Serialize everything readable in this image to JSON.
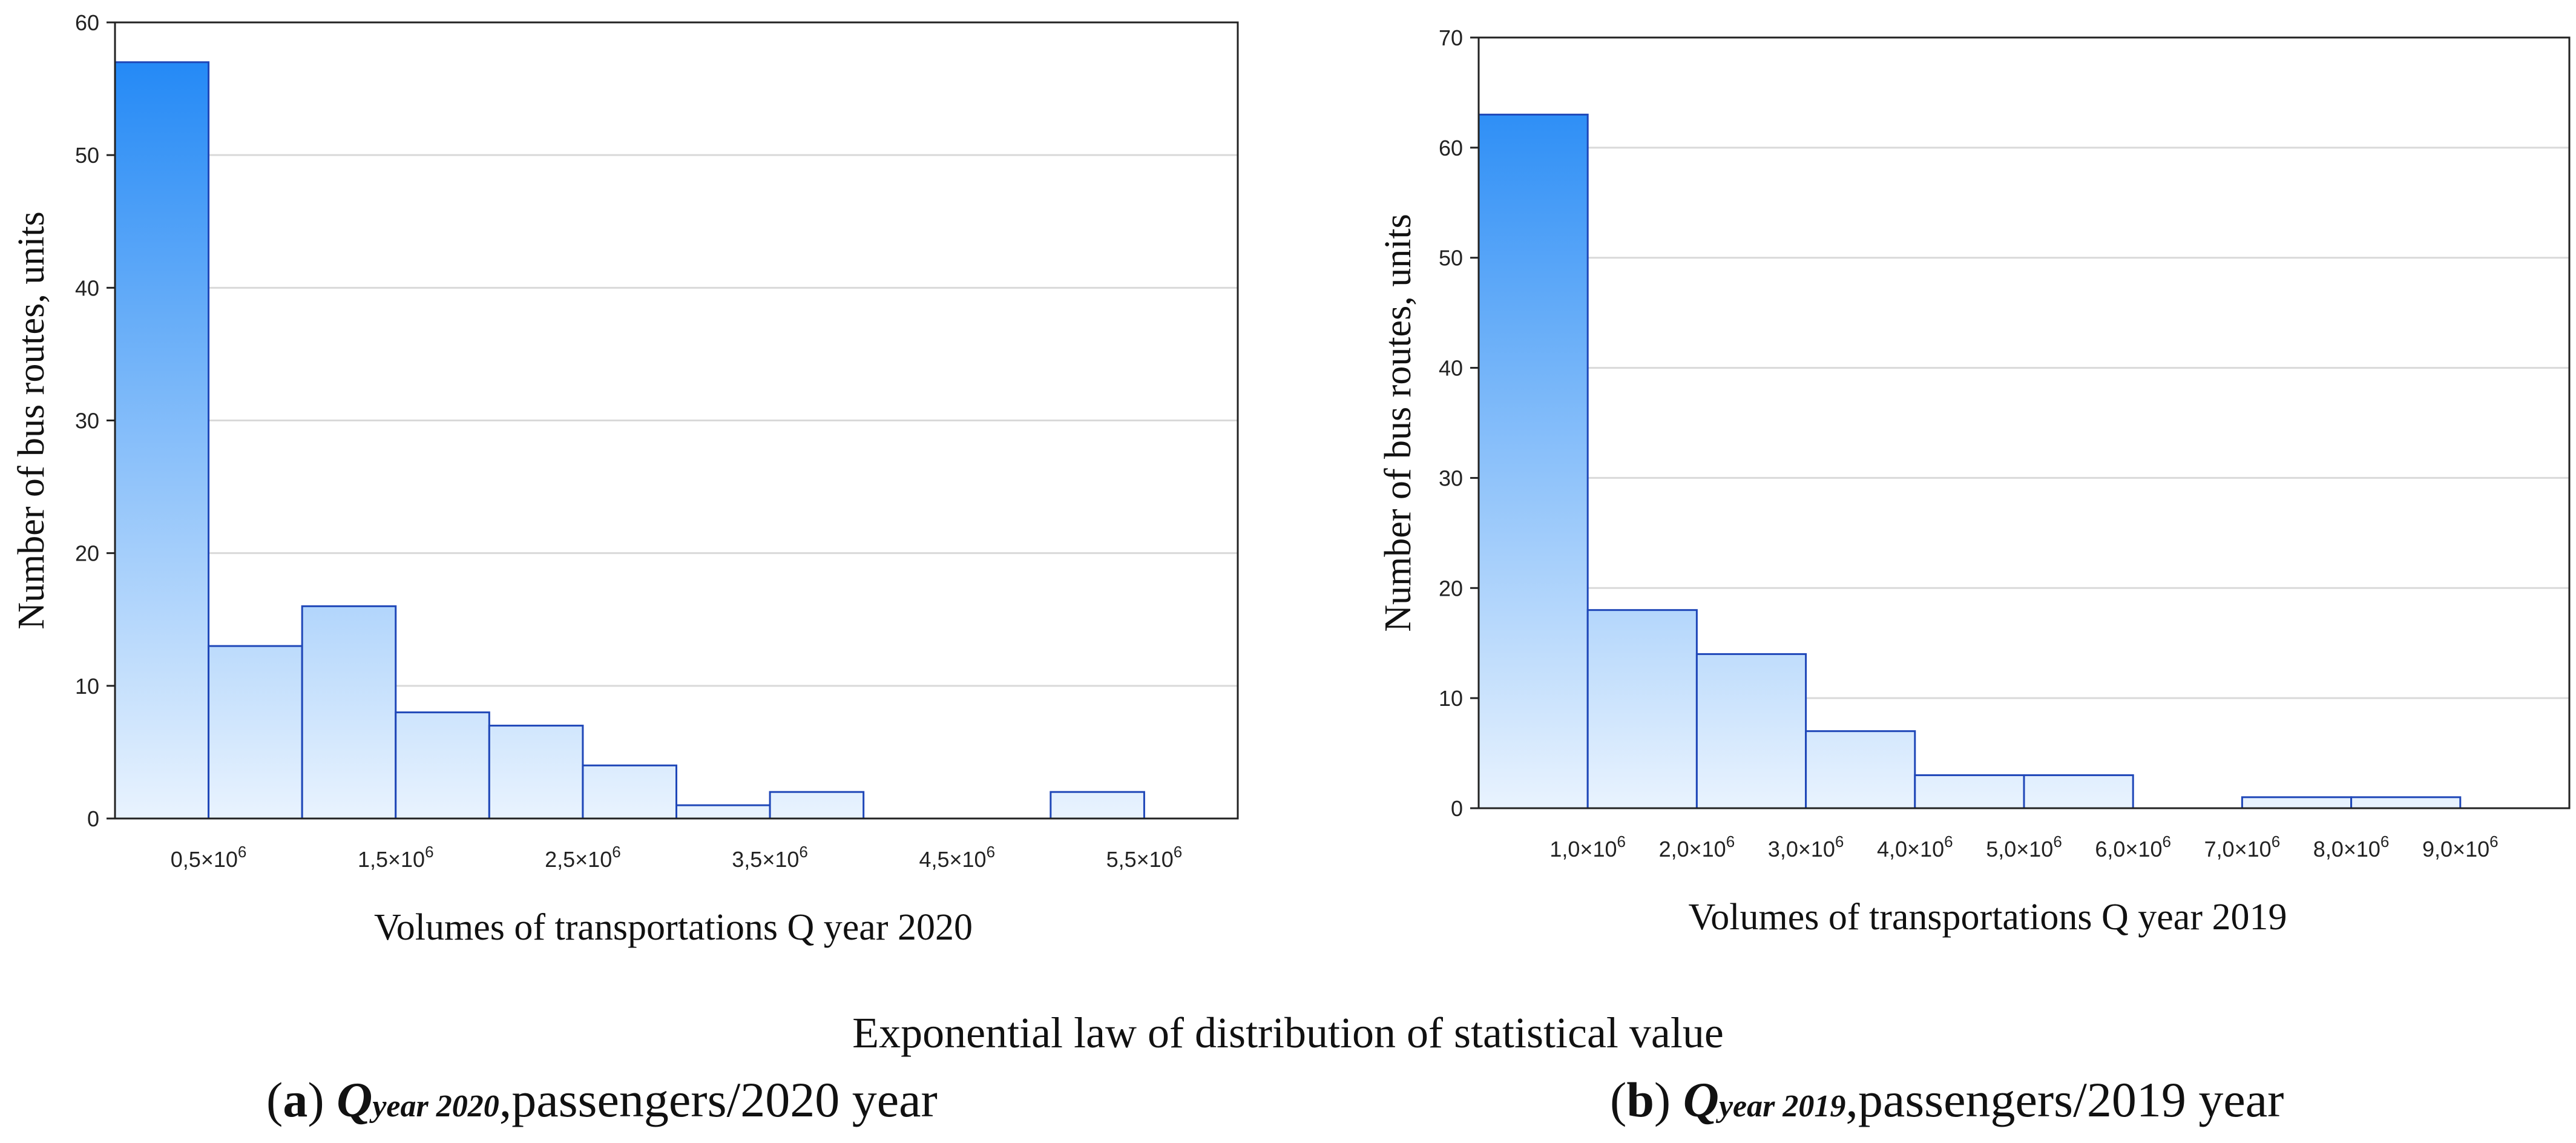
{
  "chart_data": [
    {
      "type": "bar",
      "title": "",
      "xlabel": "Volumes of transportations Q year 2020",
      "ylabel": "Number of bus routes, units",
      "ylim": [
        0,
        60
      ],
      "yticks": [
        0,
        10,
        20,
        30,
        40,
        50,
        60
      ],
      "xlim": [
        0,
        6.0
      ],
      "bin_width": 0.5,
      "xtick_values": [
        0.5,
        1.5,
        2.5,
        3.5,
        4.5,
        5.5
      ],
      "xtick_labels": [
        "0,5×10⁶",
        "1,5×10⁶",
        "2,5×10⁶",
        "3,5×10⁶",
        "4,5×10⁶",
        "5,5×10⁶"
      ],
      "categories": [
        "0–0.5",
        "0.5–1.0",
        "1.0–1.5",
        "1.5–2.0",
        "2.0–2.5",
        "2.5–3.0",
        "3.0–3.5",
        "3.5–4.0",
        "4.0–4.5",
        "4.5–5.0",
        "5.0–5.5",
        "5.5–6.0"
      ],
      "values": [
        57,
        13,
        16,
        8,
        7,
        4,
        1,
        2,
        0,
        0,
        2,
        0
      ],
      "grid": true
    },
    {
      "type": "bar",
      "title": "",
      "xlabel": "Volumes of transportations Q year 2019",
      "ylabel": "Number of bus routes, units",
      "ylim": [
        0,
        70
      ],
      "yticks": [
        0,
        10,
        20,
        30,
        40,
        50,
        60,
        70
      ],
      "xlim": [
        0,
        10.0
      ],
      "bin_width": 1.0,
      "xtick_values": [
        1,
        2,
        3,
        4,
        5,
        6,
        7,
        8,
        9
      ],
      "xtick_labels": [
        "1,0×10⁶",
        "2,0×10⁶",
        "3,0×10⁶",
        "4,0×10⁶",
        "5,0×10⁶",
        "6,0×10⁶",
        "7,0×10⁶",
        "8,0×10⁶",
        "9,0×10⁶"
      ],
      "categories": [
        "0–1",
        "1–2",
        "2–3",
        "3–4",
        "4–5",
        "5–6",
        "6–7",
        "7–8",
        "8–9",
        "9–10"
      ],
      "values": [
        63,
        18,
        14,
        7,
        3,
        3,
        0,
        1,
        1,
        0
      ],
      "grid": true
    }
  ],
  "captions": {
    "main": "Exponential law of distribution of statistical value",
    "a": {
      "label": "a",
      "q": "Q",
      "q_sub": "year 2020",
      "text": ",passengers/2020 year"
    },
    "b": {
      "label": "b",
      "q": "Q",
      "q_sub": "year 2019",
      "text": ",passengers/2019 year"
    }
  },
  "colors": {
    "bar_top": "#1a84f5",
    "bar_bottom": "#e9f3fe",
    "bar_edge": "#1f47b8",
    "grid": "#d9d9d9",
    "axis": "#222222"
  }
}
